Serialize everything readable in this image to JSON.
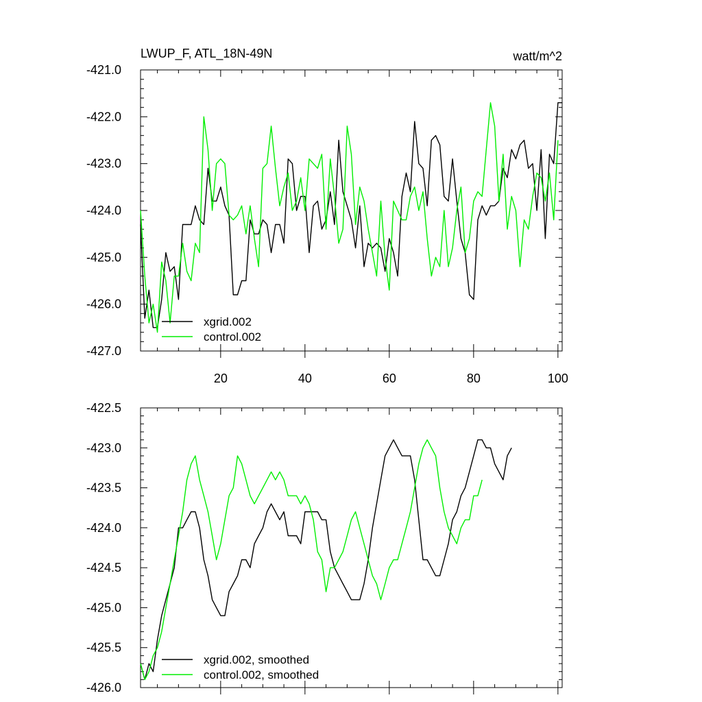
{
  "colors": {
    "xgrid": "#000000",
    "control": "#00ee00"
  },
  "chart_data": [
    {
      "type": "line",
      "title": "LWUP_F, ATL_18N-49N",
      "units": "watt/m^2",
      "xlim": [
        1,
        101
      ],
      "ylim": [
        -427.0,
        -421.0
      ],
      "yticks": [
        "-427.0",
        "-426.0",
        "-425.0",
        "-424.0",
        "-423.0",
        "-422.0",
        "-421.0"
      ],
      "xticks": [
        "20",
        "40",
        "60",
        "80",
        "100"
      ],
      "legend": [
        "xgrid.002",
        "control.002"
      ],
      "series": [
        {
          "name": "xgrid.002",
          "color": "#000000",
          "values": [
            -424.3,
            -426.3,
            -425.7,
            -426.5,
            -426.5,
            -425.9,
            -424.9,
            -425.3,
            -425.2,
            -425.9,
            -424.3,
            -424.3,
            -424.3,
            -423.9,
            -424.2,
            -424.3,
            -423.1,
            -423.8,
            -423.8,
            -423.5,
            -423.9,
            -424.1,
            -425.8,
            -425.8,
            -425.5,
            -425.5,
            -424.2,
            -424.5,
            -424.5,
            -424.2,
            -424.3,
            -424.9,
            -424.3,
            -424.3,
            -424.7,
            -422.9,
            -423.0,
            -424.0,
            -423.7,
            -423.7,
            -424.9,
            -423.9,
            -423.8,
            -424.4,
            -424.2,
            -423.6,
            -424.3,
            -422.5,
            -423.6,
            -423.9,
            -424.2,
            -424.8,
            -423.9,
            -425.2,
            -424.7,
            -424.8,
            -424.7,
            -424.8,
            -425.3,
            -424.6,
            -424.9,
            -425.4,
            -423.7,
            -423.2,
            -423.6,
            -422.1,
            -423.0,
            -423.1,
            -423.9,
            -422.5,
            -422.4,
            -422.6,
            -423.7,
            -423.8,
            -422.9,
            -423.8,
            -424.6,
            -424.9,
            -425.8,
            -425.9,
            -424.2,
            -423.9,
            -424.1,
            -423.9,
            -423.9,
            -423.8,
            -423.1,
            -423.3,
            -422.7,
            -422.9,
            -422.6,
            -422.5,
            -423.1,
            -423.0,
            -424.0,
            -422.7,
            -424.6,
            -422.8,
            -423.0,
            -421.7,
            -421.7
          ]
        },
        {
          "name": "control.002",
          "color": "#00ee00",
          "values": [
            -424.0,
            -425.4,
            -426.4,
            -426.0,
            -426.6,
            -425.1,
            -425.5,
            -426.4,
            -425.4,
            -425.4,
            -424.7,
            -425.3,
            -425.5,
            -424.7,
            -424.9,
            -422.0,
            -422.7,
            -424.0,
            -423.0,
            -422.9,
            -423.0,
            -424.1,
            -424.2,
            -424.1,
            -423.9,
            -424.5,
            -423.9,
            -424.6,
            -425.2,
            -423.1,
            -423.0,
            -422.2,
            -423.1,
            -423.9,
            -423.5,
            -423.2,
            -424.0,
            -423.8,
            -423.3,
            -424.0,
            -422.9,
            -423.0,
            -423.1,
            -422.8,
            -424.4,
            -422.9,
            -423.7,
            -424.7,
            -424.4,
            -422.2,
            -422.8,
            -424.3,
            -423.5,
            -423.8,
            -424.4,
            -424.9,
            -425.4,
            -423.8,
            -425.0,
            -425.7,
            -423.8,
            -424.0,
            -424.2,
            -424.2,
            -423.7,
            -423.5,
            -424.0,
            -423.6,
            -424.6,
            -425.4,
            -425.0,
            -425.2,
            -424.0,
            -425.2,
            -424.8,
            -424.0,
            -423.5,
            -424.9,
            -424.6,
            -423.8,
            -423.6,
            -423.7,
            -422.7,
            -421.7,
            -422.2,
            -423.8,
            -422.8,
            -424.4,
            -423.7,
            -424.0,
            -425.2,
            -424.2,
            -424.4,
            -423.7,
            -423.2,
            -423.3,
            -423.8,
            -423.2,
            -424.2,
            -422.5
          ]
        }
      ]
    },
    {
      "type": "line",
      "title": "",
      "xlim": [
        1,
        101
      ],
      "ylim": [
        -426.0,
        -422.5
      ],
      "yticks": [
        "-426.0",
        "-425.5",
        "-425.0",
        "-424.5",
        "-424.0",
        "-423.5",
        "-423.0",
        "-422.5"
      ],
      "xticks": [],
      "legend": [
        "xgrid.002, smoothed",
        "control.002, smoothed"
      ],
      "series": [
        {
          "name": "xgrid.002, smoothed",
          "color": "#000000",
          "values": [
            -425.7,
            -425.9,
            -425.7,
            -425.8,
            -425.4,
            -425.1,
            -424.9,
            -424.7,
            -424.5,
            -424.0,
            -424.0,
            -423.9,
            -423.8,
            -423.8,
            -424.0,
            -424.4,
            -424.6,
            -424.9,
            -425.0,
            -425.1,
            -425.1,
            -424.8,
            -424.7,
            -424.6,
            -424.4,
            -424.4,
            -424.5,
            -424.2,
            -424.1,
            -424.0,
            -423.8,
            -423.7,
            -423.8,
            -423.9,
            -423.8,
            -424.1,
            -424.1,
            -424.1,
            -424.2,
            -423.8,
            -423.8,
            -423.8,
            -423.8,
            -423.9,
            -423.9,
            -424.3,
            -424.5,
            -424.6,
            -424.7,
            -424.8,
            -424.9,
            -424.9,
            -424.9,
            -424.7,
            -424.4,
            -424.0,
            -423.7,
            -423.4,
            -423.1,
            -423.0,
            -422.9,
            -423.0,
            -423.1,
            -423.1,
            -423.1,
            -423.4,
            -423.9,
            -424.4,
            -424.4,
            -424.5,
            -424.6,
            -424.6,
            -424.4,
            -424.2,
            -423.9,
            -423.8,
            -423.6,
            -423.5,
            -423.3,
            -423.1,
            -422.9,
            -422.9,
            -423.0,
            -423.0,
            -423.2,
            -423.3,
            -423.4,
            -423.1,
            -423.0
          ]
        },
        {
          "name": "control.002, smoothed",
          "color": "#00ee00",
          "values": [
            -425.7,
            -425.9,
            -425.8,
            -425.6,
            -425.5,
            -425.3,
            -425.0,
            -424.7,
            -424.4,
            -424.1,
            -423.8,
            -423.4,
            -423.2,
            -423.1,
            -423.4,
            -423.6,
            -423.8,
            -424.1,
            -424.4,
            -424.2,
            -423.9,
            -423.6,
            -423.5,
            -423.1,
            -423.2,
            -423.4,
            -423.6,
            -423.7,
            -423.6,
            -423.5,
            -423.4,
            -423.3,
            -423.4,
            -423.3,
            -423.4,
            -423.6,
            -423.6,
            -423.6,
            -423.7,
            -423.6,
            -423.7,
            -423.9,
            -424.3,
            -424.4,
            -424.8,
            -424.5,
            -424.5,
            -424.4,
            -424.3,
            -424.1,
            -423.9,
            -423.8,
            -424.0,
            -424.2,
            -424.4,
            -424.6,
            -424.7,
            -424.9,
            -424.7,
            -424.5,
            -424.4,
            -424.4,
            -424.2,
            -424.0,
            -423.8,
            -423.5,
            -423.2,
            -423.0,
            -422.9,
            -423.0,
            -423.1,
            -423.5,
            -423.8,
            -424.0,
            -424.1,
            -424.2,
            -424.0,
            -423.9,
            -423.9,
            -423.6,
            -423.6,
            -423.4
          ]
        }
      ]
    }
  ]
}
